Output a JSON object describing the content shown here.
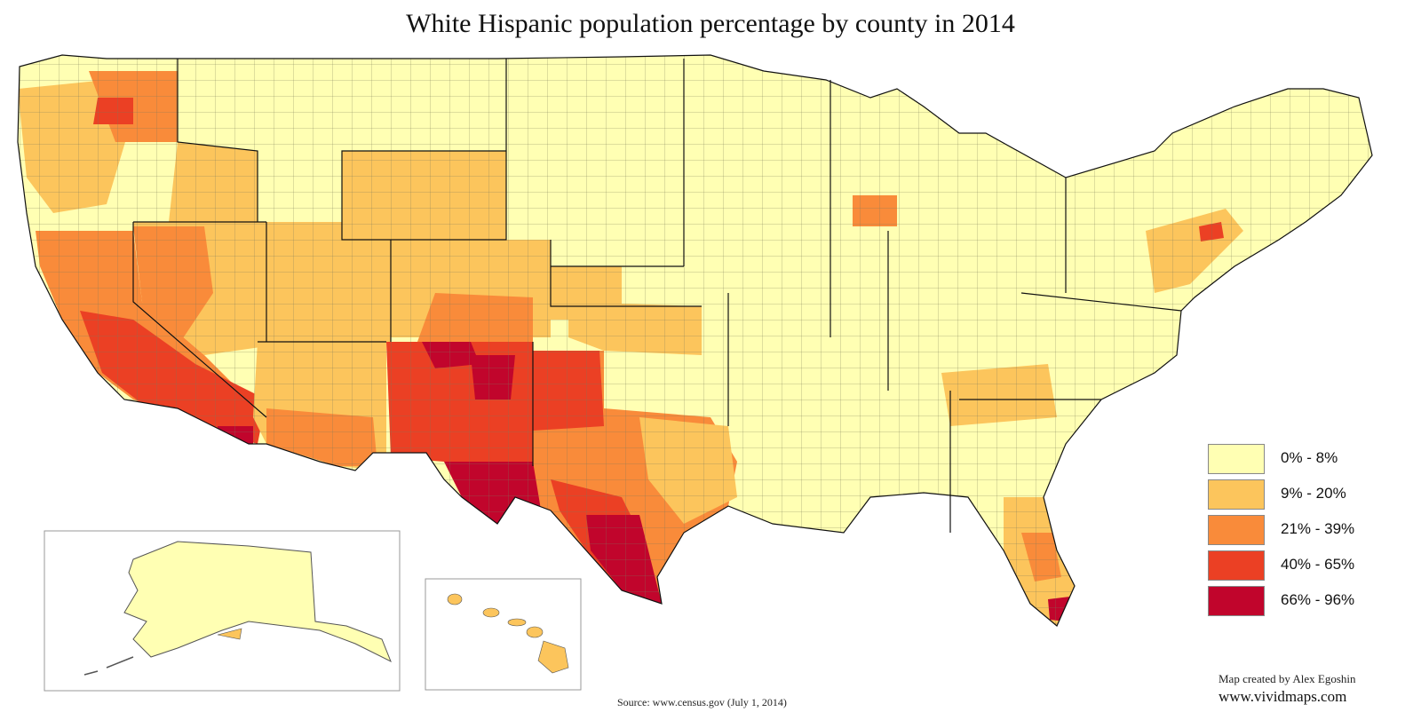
{
  "title": "White Hispanic population percentage by county in 2014",
  "legend": [
    {
      "label": "0% - 8%",
      "color": "#FFFFB3"
    },
    {
      "label": "9% - 20%",
      "color": "#FCC55C"
    },
    {
      "label": "21% - 39%",
      "color": "#F98B3A"
    },
    {
      "label": "40% - 65%",
      "color": "#EB4024"
    },
    {
      "label": "66% - 96%",
      "color": "#C1052C"
    }
  ],
  "source": "Source: www.census.gov (July 1, 2014)",
  "credit": "Map created by Alex Egoshin",
  "website": "www.vividmaps.com",
  "icons": [
    "alaska-inset",
    "hawaii-inset"
  ]
}
